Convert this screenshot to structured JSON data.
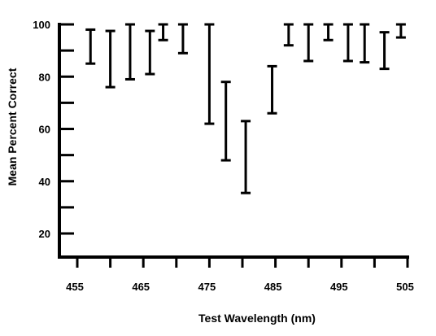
{
  "chart_data": {
    "type": "error-bar",
    "xlabel": "Test Wavelength (nm)",
    "ylabel": "Mean Percent Correct",
    "x_ticks": [
      455,
      465,
      475,
      485,
      495,
      505
    ],
    "y_ticks": [
      20,
      40,
      60,
      80,
      100
    ],
    "xlim": [
      455,
      505
    ],
    "ylim": [
      12,
      100
    ],
    "grid": false,
    "legend": "none",
    "series": [
      {
        "points": [
          {
            "x": 457,
            "low": 85,
            "high": 98
          },
          {
            "x": 460,
            "low": 76,
            "high": 97.5
          },
          {
            "x": 463,
            "low": 79,
            "high": 100
          },
          {
            "x": 466,
            "low": 81,
            "high": 97.5
          },
          {
            "x": 468,
            "low": 94,
            "high": 100
          },
          {
            "x": 471,
            "low": 89,
            "high": 100
          },
          {
            "x": 475,
            "low": 62,
            "high": 100
          },
          {
            "x": 477.5,
            "low": 48,
            "high": 78
          },
          {
            "x": 480.5,
            "low": 35.5,
            "high": 63
          },
          {
            "x": 484.5,
            "low": 66,
            "high": 84
          },
          {
            "x": 487,
            "low": 92,
            "high": 100
          },
          {
            "x": 490,
            "low": 86,
            "high": 100
          },
          {
            "x": 493,
            "low": 94,
            "high": 100
          },
          {
            "x": 496,
            "low": 86,
            "high": 100
          },
          {
            "x": 498.5,
            "low": 85.5,
            "high": 100
          },
          {
            "x": 501.5,
            "low": 83,
            "high": 97
          },
          {
            "x": 504,
            "low": 95,
            "high": 100
          }
        ]
      }
    ]
  }
}
